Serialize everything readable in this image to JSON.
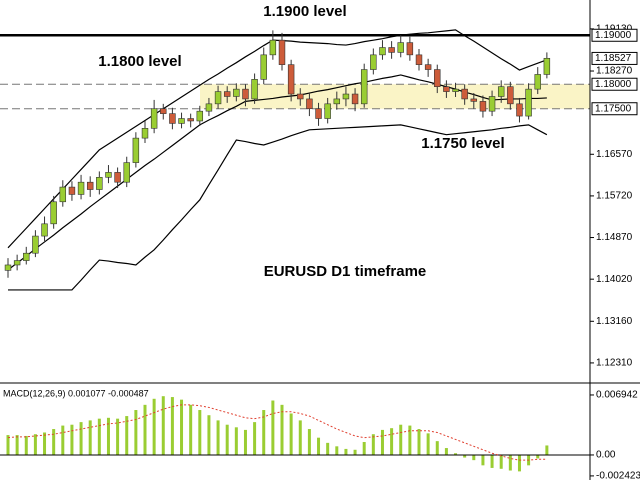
{
  "chart_data": [
    {
      "type": "candlestick",
      "annotations": [
        "1.1900 level",
        "1.1800 level",
        "1.1750 level",
        "EURUSD D1 timeframe"
      ],
      "ylim": [
        1.119,
        1.1972
      ],
      "yticks": [
        {
          "value": 1.1913,
          "label": "1.19130"
        },
        {
          "value": 1.1827,
          "label": "1.18270"
        },
        {
          "value": 1.1657,
          "label": "1.16570"
        },
        {
          "value": 1.1572,
          "label": "1.15720"
        },
        {
          "value": 1.1487,
          "label": "1.14870"
        },
        {
          "value": 1.1402,
          "label": "1.14020"
        },
        {
          "value": 1.1316,
          "label": "1.13160"
        },
        {
          "value": 1.1231,
          "label": "1.12310"
        }
      ],
      "levels": [
        {
          "value": 1.19,
          "label": "1.19000"
        },
        {
          "value": 1.18,
          "label": "1.18000"
        },
        {
          "value": 1.175,
          "label": "1.17500"
        }
      ],
      "current_price": {
        "value": 1.18527,
        "label": "1.18527"
      },
      "colors": {
        "up": "#9acd32",
        "down": "#cd5c3a",
        "band": "#faf4c6",
        "level": "#000000",
        "indicator": "#000000"
      },
      "open": [
        1.142,
        1.1431,
        1.144,
        1.1455,
        1.149,
        1.1515,
        1.156,
        1.159,
        1.1575,
        1.16,
        1.1585,
        1.161,
        1.162,
        1.16,
        1.164,
        1.169,
        1.171,
        1.175,
        1.174,
        1.172,
        1.173,
        1.1725,
        1.1745,
        1.176,
        1.1785,
        1.1775,
        1.179,
        1.177,
        1.181,
        1.186,
        1.189,
        1.184,
        1.178,
        1.177,
        1.175,
        1.173,
        1.176,
        1.177,
        1.178,
        1.176,
        1.183,
        1.186,
        1.1875,
        1.1865,
        1.1885,
        1.186,
        1.184,
        1.183,
        1.1795,
        1.1785,
        1.179,
        1.177,
        1.1765,
        1.1745,
        1.1775,
        1.1795,
        1.176,
        1.1735,
        1.179,
        1.182
      ],
      "high": [
        1.1445,
        1.1452,
        1.1468,
        1.1502,
        1.153,
        1.1572,
        1.1604,
        1.1602,
        1.1615,
        1.1612,
        1.1622,
        1.1635,
        1.163,
        1.1652,
        1.1702,
        1.1725,
        1.1768,
        1.176,
        1.1752,
        1.1742,
        1.174,
        1.1756,
        1.1772,
        1.1797,
        1.1796,
        1.1802,
        1.18,
        1.1822,
        1.1875,
        1.191,
        1.1905,
        1.185,
        1.1792,
        1.1782,
        1.1762,
        1.1772,
        1.1785,
        1.1795,
        1.1792,
        1.1842,
        1.1873,
        1.189,
        1.1888,
        1.19,
        1.1897,
        1.1872,
        1.1852,
        1.184,
        1.1808,
        1.1803,
        1.18,
        1.1782,
        1.1777,
        1.1787,
        1.1808,
        1.1805,
        1.1772,
        1.1802,
        1.1835,
        1.1865
      ],
      "low": [
        1.1405,
        1.142,
        1.1432,
        1.1447,
        1.148,
        1.1505,
        1.155,
        1.1562,
        1.1565,
        1.157,
        1.1575,
        1.1598,
        1.1588,
        1.159,
        1.163,
        1.168,
        1.17,
        1.1728,
        1.1708,
        1.171,
        1.1712,
        1.1715,
        1.1735,
        1.175,
        1.1762,
        1.1765,
        1.1755,
        1.176,
        1.18,
        1.185,
        1.1828,
        1.1765,
        1.1756,
        1.1735,
        1.1715,
        1.172,
        1.1748,
        1.1755,
        1.1745,
        1.1752,
        1.182,
        1.185,
        1.1852,
        1.1855,
        1.1848,
        1.1828,
        1.1815,
        1.1782,
        1.1772,
        1.1774,
        1.1758,
        1.175,
        1.1732,
        1.1735,
        1.1762,
        1.1748,
        1.1722,
        1.1728,
        1.178,
        1.1812
      ],
      "close": [
        1.1431,
        1.144,
        1.1455,
        1.149,
        1.1515,
        1.156,
        1.159,
        1.1575,
        1.16,
        1.1585,
        1.161,
        1.162,
        1.16,
        1.164,
        1.169,
        1.171,
        1.175,
        1.174,
        1.172,
        1.173,
        1.1725,
        1.1745,
        1.176,
        1.1785,
        1.1775,
        1.179,
        1.177,
        1.181,
        1.186,
        1.189,
        1.184,
        1.178,
        1.177,
        1.175,
        1.173,
        1.176,
        1.177,
        1.178,
        1.176,
        1.183,
        1.186,
        1.1875,
        1.1865,
        1.1885,
        1.186,
        1.184,
        1.183,
        1.1795,
        1.1785,
        1.179,
        1.177,
        1.1765,
        1.1745,
        1.1775,
        1.1795,
        1.176,
        1.1735,
        1.179,
        1.182,
        1.1853
      ],
      "bands": {
        "upper": [
          1.1466,
          1.1486,
          1.1506,
          1.1526,
          1.1546,
          1.1566,
          1.1586,
          1.1606,
          1.1626,
          1.1646,
          1.1666,
          1.1678,
          1.169,
          1.1702,
          1.1714,
          1.1726,
          1.1738,
          1.175,
          1.1762,
          1.1774,
          1.1786,
          1.1798,
          1.181,
          1.1821,
          1.1833,
          1.1844,
          1.1856,
          1.1867,
          1.1879,
          1.189,
          1.1889,
          1.1888,
          1.1886,
          1.1885,
          1.1884,
          1.1883,
          1.1881,
          1.188,
          1.1883,
          1.1887,
          1.189,
          1.1893,
          1.1897,
          1.19,
          1.1902,
          1.1904,
          1.1905,
          1.1907,
          1.1909,
          1.1911,
          1.1899,
          1.1888,
          1.1876,
          1.1864,
          1.1852,
          1.1841,
          1.1829,
          1.1836,
          1.1843,
          1.185
        ],
        "middle": [
          1.1421,
          1.1435,
          1.1449,
          1.1464,
          1.1478,
          1.1492,
          1.1507,
          1.1521,
          1.1535,
          1.155,
          1.1564,
          1.1578,
          1.1592,
          1.1606,
          1.162,
          1.1634,
          1.1647,
          1.1661,
          1.1675,
          1.1689,
          1.1703,
          1.1717,
          1.1727,
          1.1736,
          1.1746,
          1.1755,
          1.1765,
          1.1767,
          1.1769,
          1.1771,
          1.1774,
          1.1776,
          1.1778,
          1.1782,
          1.1786,
          1.1789,
          1.1793,
          1.1797,
          1.1801,
          1.1804,
          1.1808,
          1.1812,
          1.1815,
          1.1819,
          1.1814,
          1.1809,
          1.1805,
          1.18,
          1.1795,
          1.179,
          1.1784,
          1.1779,
          1.1773,
          1.1768,
          1.1769,
          1.177,
          1.177,
          1.1771,
          1.1771,
          1.1772
        ],
        "lower": [
          1.138,
          1.138,
          1.138,
          1.138,
          1.138,
          1.138,
          1.138,
          1.138,
          1.14,
          1.1421,
          1.1441,
          1.1439,
          1.1436,
          1.1434,
          1.1431,
          1.1447,
          1.1462,
          1.1482,
          1.1503,
          1.1523,
          1.1544,
          1.1564,
          1.1595,
          1.1625,
          1.1656,
          1.1686,
          1.1683,
          1.1679,
          1.1676,
          1.1682,
          1.1688,
          1.1695,
          1.1701,
          1.1707,
          1.1708,
          1.1709,
          1.171,
          1.1711,
          1.1712,
          1.1713,
          1.1714,
          1.1715,
          1.1716,
          1.1717,
          1.1713,
          1.1709,
          1.1705,
          1.1701,
          1.1697,
          1.1699,
          1.1701,
          1.1703,
          1.1705,
          1.1707,
          1.171,
          1.1712,
          1.1715,
          1.1717,
          1.1707,
          1.1697
        ]
      }
    },
    {
      "type": "macd",
      "label": "MACD(12,26,9) 0.001077 -0.000487",
      "ylim": [
        -0.00255,
        0.00798
      ],
      "yticks": [
        0.006942,
        {
          "value": 0,
          "label": "0.00"
        },
        -0.002423
      ],
      "histogram": {
        "color": "#9acd32",
        "values": [
          0.0023,
          0.0023,
          0.0022,
          0.0024,
          0.0026,
          0.003,
          0.0034,
          0.0035,
          0.0038,
          0.004,
          0.0042,
          0.0043,
          0.0042,
          0.0045,
          0.0052,
          0.0058,
          0.0065,
          0.0068,
          0.0067,
          0.0064,
          0.0058,
          0.0052,
          0.0046,
          0.004,
          0.0035,
          0.0032,
          0.0029,
          0.0038,
          0.0052,
          0.0063,
          0.0058,
          0.0048,
          0.004,
          0.003,
          0.002,
          0.0014,
          0.001,
          0.0007,
          0.0006,
          0.0015,
          0.0024,
          0.0029,
          0.0031,
          0.0035,
          0.0034,
          0.003,
          0.0025,
          0.0016,
          0.0008,
          0.0002,
          -0.0003,
          -0.0006,
          -0.0012,
          -0.0015,
          -0.0016,
          -0.0018,
          -0.0019,
          -0.0012,
          -0.0004,
          0.0011
        ]
      },
      "signal": {
        "color": "#e04030",
        "values": [
          0.002,
          0.0021,
          0.0021,
          0.0022,
          0.0023,
          0.0024,
          0.0026,
          0.0028,
          0.003,
          0.0032,
          0.0034,
          0.0036,
          0.0037,
          0.0039,
          0.0041,
          0.0045,
          0.0049,
          0.0053,
          0.0056,
          0.0058,
          0.0058,
          0.0057,
          0.0055,
          0.0052,
          0.0049,
          0.0046,
          0.0043,
          0.0042,
          0.0044,
          0.0048,
          0.005,
          0.005,
          0.0048,
          0.0045,
          0.004,
          0.0035,
          0.003,
          0.0026,
          0.0022,
          0.002,
          0.0021,
          0.0022,
          0.0024,
          0.0026,
          0.0028,
          0.0028,
          0.0028,
          0.0026,
          0.0022,
          0.0018,
          0.0014,
          0.001,
          0.0006,
          0.0002,
          -0.0001,
          -0.0004,
          -0.0006,
          -0.0006,
          -0.0005,
          -0.0005
        ]
      }
    }
  ]
}
